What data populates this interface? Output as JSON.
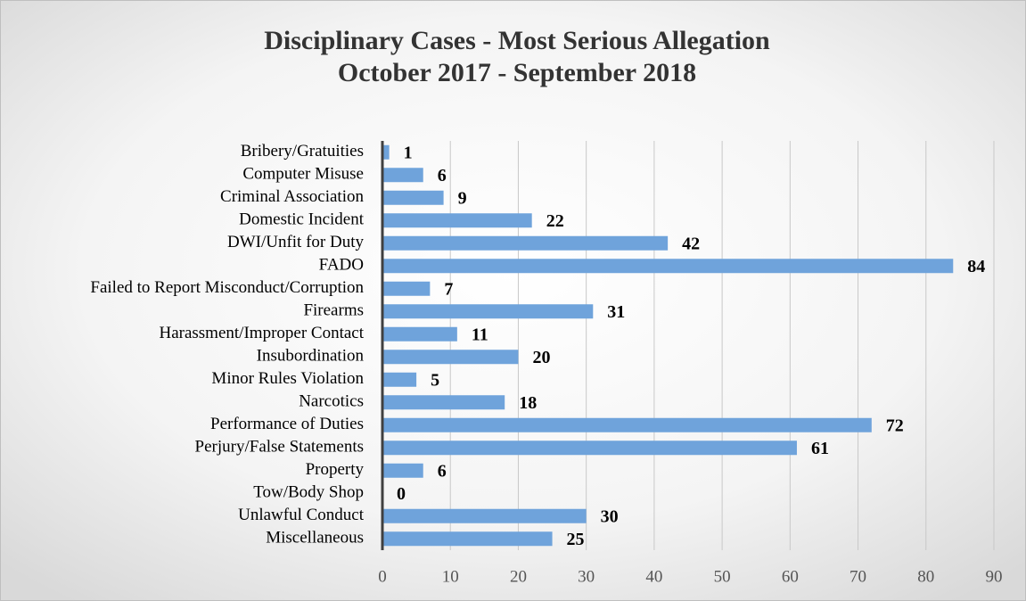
{
  "chart_data": {
    "type": "hbar",
    "title": "Disciplinary Cases - Most Serious Allegation",
    "subtitle": "October 2017 - September 2018",
    "categories": [
      "Bribery/Gratuities",
      "Computer Misuse",
      "Criminal Association",
      "Domestic Incident",
      "DWI/Unfit for Duty",
      "FADO",
      "Failed to Report Misconduct/Corruption",
      "Firearms",
      "Harassment/Improper Contact",
      "Insubordination",
      "Minor Rules Violation",
      "Narcotics",
      "Performance of Duties",
      "Perjury/False Statements",
      "Property",
      "Tow/Body Shop",
      "Unlawful Conduct",
      "Miscellaneous"
    ],
    "values": [
      1,
      6,
      9,
      22,
      42,
      84,
      7,
      31,
      11,
      20,
      5,
      18,
      72,
      61,
      6,
      0,
      30,
      25
    ],
    "color": "#6fa3db",
    "xlim": [
      0,
      90
    ],
    "xticks": [
      0,
      10,
      20,
      30,
      40,
      50,
      60,
      70,
      80,
      90
    ],
    "grid": true
  }
}
